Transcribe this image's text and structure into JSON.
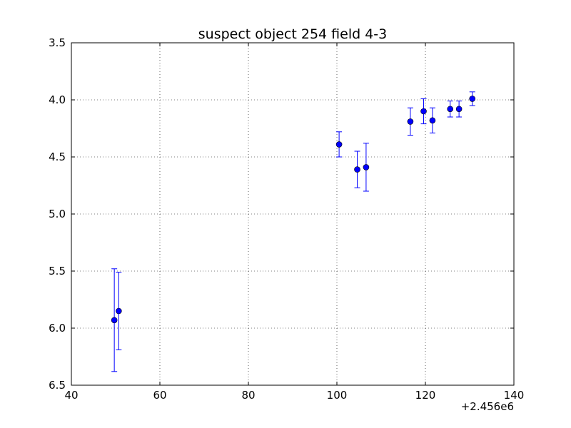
{
  "chart_data": {
    "type": "scatter",
    "title": "suspect object 254 field 4-3",
    "xlabel": "",
    "ylabel": "",
    "x_offset_label": "+2.456e6",
    "xlim": [
      40,
      140
    ],
    "ylim": [
      6.5,
      3.5
    ],
    "y_inverted": true,
    "x_ticks": [
      40,
      60,
      80,
      100,
      120,
      140
    ],
    "y_ticks": [
      3.5,
      4.0,
      4.5,
      5.0,
      5.5,
      6.0,
      6.5
    ],
    "x_tick_labels": [
      "40",
      "60",
      "80",
      "100",
      "120",
      "140"
    ],
    "y_tick_labels": [
      "3.5",
      "4.0",
      "4.5",
      "5.0",
      "5.5",
      "6.0",
      "6.5"
    ],
    "grid": true,
    "color": "#0000ff",
    "points": [
      {
        "x": 49.7,
        "y": 5.93,
        "err": 0.45
      },
      {
        "x": 50.7,
        "y": 5.85,
        "err": 0.34
      },
      {
        "x": 100.5,
        "y": 4.39,
        "err": 0.11
      },
      {
        "x": 104.6,
        "y": 4.61,
        "err": 0.16
      },
      {
        "x": 106.6,
        "y": 4.59,
        "err": 0.21
      },
      {
        "x": 116.6,
        "y": 4.19,
        "err": 0.12
      },
      {
        "x": 119.6,
        "y": 4.1,
        "err": 0.11
      },
      {
        "x": 121.6,
        "y": 4.18,
        "err": 0.11
      },
      {
        "x": 125.6,
        "y": 4.08,
        "err": 0.07
      },
      {
        "x": 127.6,
        "y": 4.08,
        "err": 0.07
      },
      {
        "x": 130.6,
        "y": 3.99,
        "err": 0.06
      }
    ]
  }
}
